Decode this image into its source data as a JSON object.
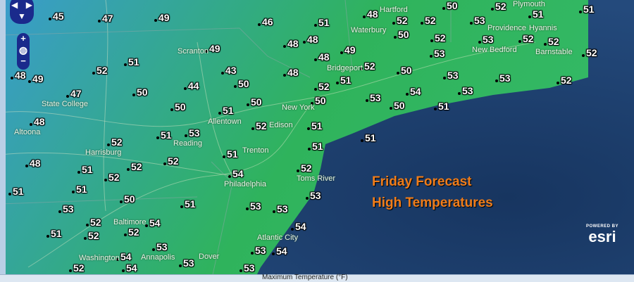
{
  "title": {
    "line1": "Friday Forecast",
    "line2": "High Temperatures"
  },
  "legend": {
    "label": "Maximum Temperature (°F)"
  },
  "attribution": {
    "powered_by": "POWERED BY",
    "brand": "esri"
  },
  "colors": {
    "land_cool": "#3a9ccc",
    "land_warm": "#2fb35c",
    "ocean": "#1c3a66",
    "title": "#f07d1a"
  },
  "controls": {
    "zoom_in": "+",
    "zoom_out": "−",
    "pan_icons": [
      "arrow-up-icon",
      "arrow-left-icon",
      "arrow-right-icon",
      "arrow-down-icon"
    ],
    "globe": "globe-icon"
  },
  "temperatures": [
    45,
    47,
    49,
    46,
    51,
    48,
    52,
    52,
    50,
    53,
    52,
    51,
    51,
    49,
    48,
    48,
    48,
    49,
    50,
    52,
    53,
    52,
    52,
    52,
    53,
    48,
    49,
    52,
    51,
    43,
    48,
    52,
    50,
    53,
    53,
    52,
    47,
    50,
    44,
    50,
    52,
    51,
    54,
    53,
    50,
    50,
    53,
    48,
    50,
    51,
    51,
    50,
    51,
    52,
    51,
    53,
    52,
    51,
    51,
    48,
    51,
    52,
    52,
    51,
    54,
    52,
    51,
    52,
    51,
    50,
    51,
    53,
    53,
    53,
    53,
    52,
    54,
    51,
    52,
    52,
    53,
    54,
    54,
    53,
    53,
    54,
    52,
    54,
    53
  ],
  "cities": [
    "State College",
    "Altoona",
    "Harrisburg",
    "Reading",
    "Allentown",
    "Scranton",
    "New York",
    "Edison",
    "Trenton",
    "Philadelphia",
    "Toms River",
    "Bridgeport",
    "Waterbury",
    "Hartford",
    "Providence",
    "New Bedford",
    "Plymouth",
    "Hyannis",
    "Barnstable",
    "Atlantic City",
    "Baltimore",
    "Annapolis",
    "Washington",
    "Dover"
  ]
}
